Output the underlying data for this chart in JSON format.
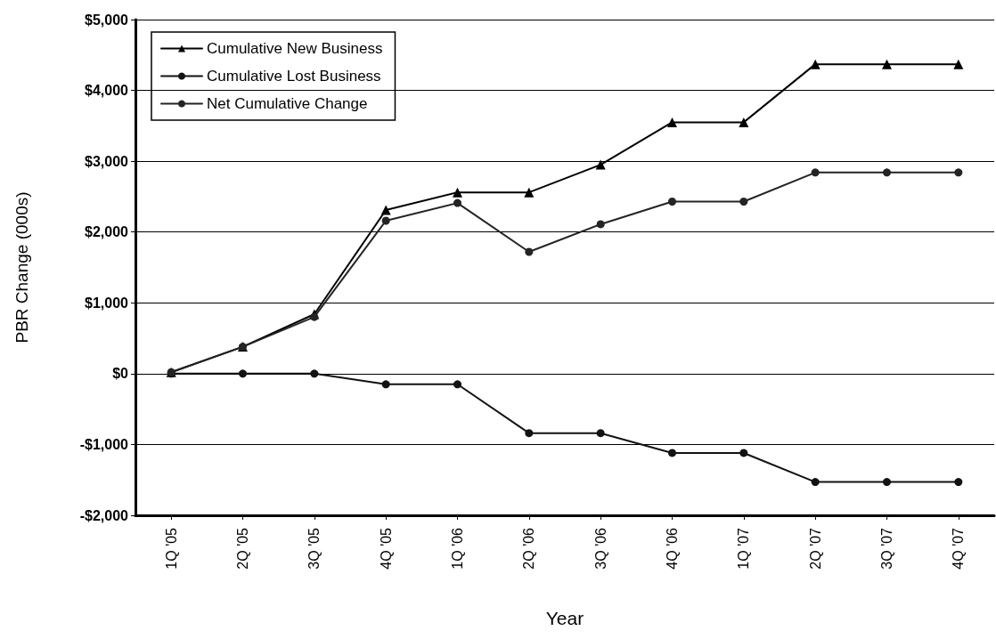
{
  "chart_data": {
    "type": "line",
    "xlabel": "Year",
    "ylabel": "PBR Change (000s)",
    "categories": [
      "1Q '05",
      "2Q '05",
      "3Q '05",
      "4Q '05",
      "1Q '06",
      "2Q '06",
      "3Q '06",
      "4Q '06",
      "1Q '07",
      "2Q '07",
      "3Q '07",
      "4Q '07"
    ],
    "series": [
      {
        "name": "Cumulative New Business",
        "color": "#000000",
        "marker": "triangle",
        "values": [
          20,
          380,
          840,
          2310,
          2560,
          2560,
          2950,
          3550,
          3550,
          4370,
          4370,
          4370
        ]
      },
      {
        "name": "Cumulative Lost Business",
        "color": "#121212",
        "marker": "circle",
        "values": [
          0,
          0,
          0,
          -150,
          -150,
          -840,
          -840,
          -1120,
          -1120,
          -1530,
          -1530,
          -1530
        ]
      },
      {
        "name": "Net Cumulative Change",
        "color": "#242424",
        "marker": "circle",
        "values": [
          20,
          380,
          800,
          2160,
          2410,
          1720,
          2110,
          2430,
          2430,
          2840,
          2840,
          2840
        ]
      }
    ],
    "ylim": [
      -2000,
      5000
    ],
    "yticks": [
      {
        "value": -2000,
        "label": "-$2,000"
      },
      {
        "value": -1000,
        "label": "-$1,000"
      },
      {
        "value": 0,
        "label": "$0"
      },
      {
        "value": 1000,
        "label": "$1,000"
      },
      {
        "value": 2000,
        "label": "$2,000"
      },
      {
        "value": 3000,
        "label": "$3,000"
      },
      {
        "value": 4000,
        "label": "$4,000"
      },
      {
        "value": 5000,
        "label": "$5,000"
      }
    ],
    "grid": "y",
    "legend": "top left",
    "line_style": "solid"
  }
}
